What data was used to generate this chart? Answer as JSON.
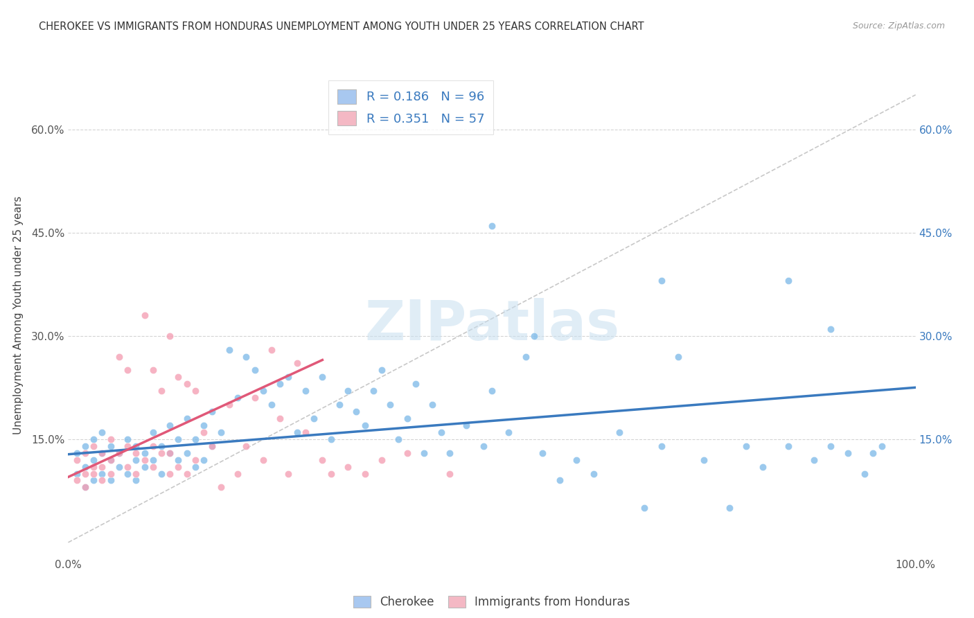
{
  "title": "CHEROKEE VS IMMIGRANTS FROM HONDURAS UNEMPLOYMENT AMONG YOUTH UNDER 25 YEARS CORRELATION CHART",
  "source": "Source: ZipAtlas.com",
  "ylabel": "Unemployment Among Youth under 25 years",
  "xlim": [
    0,
    1.0
  ],
  "ylim": [
    -0.02,
    0.68
  ],
  "yticks": [
    0.15,
    0.3,
    0.45,
    0.6
  ],
  "yticklabels": [
    "15.0%",
    "30.0%",
    "45.0%",
    "60.0%"
  ],
  "legend_labels": [
    "Cherokee",
    "Immigrants from Honduras"
  ],
  "legend_colors": [
    "#a8c8f0",
    "#f4b8c4"
  ],
  "R_blue": 0.186,
  "N_blue": 96,
  "R_pink": 0.351,
  "N_pink": 57,
  "blue_color": "#7ab8e8",
  "pink_color": "#f4a0b5",
  "blue_line_color": "#3a7abf",
  "pink_line_color": "#e05878",
  "diagonal_color": "#c8c8c8",
  "watermark": "ZIPatlas",
  "background_color": "#ffffff",
  "blue_scatter_x": [
    0.01,
    0.01,
    0.02,
    0.02,
    0.02,
    0.03,
    0.03,
    0.03,
    0.04,
    0.04,
    0.04,
    0.05,
    0.05,
    0.05,
    0.06,
    0.06,
    0.07,
    0.07,
    0.08,
    0.08,
    0.08,
    0.09,
    0.09,
    0.1,
    0.1,
    0.11,
    0.11,
    0.12,
    0.12,
    0.13,
    0.13,
    0.14,
    0.14,
    0.15,
    0.15,
    0.16,
    0.16,
    0.17,
    0.17,
    0.18,
    0.19,
    0.2,
    0.21,
    0.22,
    0.23,
    0.24,
    0.25,
    0.26,
    0.27,
    0.28,
    0.29,
    0.3,
    0.31,
    0.32,
    0.33,
    0.34,
    0.35,
    0.36,
    0.37,
    0.38,
    0.39,
    0.4,
    0.41,
    0.42,
    0.43,
    0.44,
    0.45,
    0.47,
    0.49,
    0.5,
    0.52,
    0.54,
    0.56,
    0.58,
    0.6,
    0.62,
    0.65,
    0.68,
    0.7,
    0.72,
    0.75,
    0.78,
    0.8,
    0.82,
    0.85,
    0.88,
    0.9,
    0.92,
    0.94,
    0.96,
    0.5,
    0.55,
    0.7,
    0.85,
    0.9,
    0.95
  ],
  "blue_scatter_y": [
    0.1,
    0.13,
    0.08,
    0.11,
    0.14,
    0.09,
    0.12,
    0.15,
    0.1,
    0.13,
    0.16,
    0.09,
    0.12,
    0.14,
    0.11,
    0.13,
    0.1,
    0.15,
    0.09,
    0.12,
    0.14,
    0.11,
    0.13,
    0.12,
    0.16,
    0.1,
    0.14,
    0.13,
    0.17,
    0.12,
    0.15,
    0.13,
    0.18,
    0.11,
    0.15,
    0.12,
    0.17,
    0.14,
    0.19,
    0.16,
    0.28,
    0.21,
    0.27,
    0.25,
    0.22,
    0.2,
    0.23,
    0.24,
    0.16,
    0.22,
    0.18,
    0.24,
    0.15,
    0.2,
    0.22,
    0.19,
    0.17,
    0.22,
    0.25,
    0.2,
    0.15,
    0.18,
    0.23,
    0.13,
    0.2,
    0.16,
    0.13,
    0.17,
    0.14,
    0.22,
    0.16,
    0.27,
    0.13,
    0.09,
    0.12,
    0.1,
    0.16,
    0.05,
    0.14,
    0.27,
    0.12,
    0.05,
    0.14,
    0.11,
    0.14,
    0.12,
    0.31,
    0.13,
    0.1,
    0.14,
    0.46,
    0.3,
    0.38,
    0.38,
    0.14,
    0.13
  ],
  "pink_scatter_x": [
    0.01,
    0.01,
    0.02,
    0.02,
    0.02,
    0.03,
    0.03,
    0.03,
    0.04,
    0.04,
    0.04,
    0.05,
    0.05,
    0.05,
    0.06,
    0.06,
    0.07,
    0.07,
    0.07,
    0.08,
    0.08,
    0.09,
    0.09,
    0.1,
    0.1,
    0.1,
    0.11,
    0.11,
    0.12,
    0.12,
    0.12,
    0.13,
    0.13,
    0.14,
    0.14,
    0.15,
    0.15,
    0.16,
    0.17,
    0.18,
    0.19,
    0.2,
    0.21,
    0.22,
    0.23,
    0.24,
    0.25,
    0.26,
    0.27,
    0.28,
    0.3,
    0.31,
    0.33,
    0.35,
    0.37,
    0.4,
    0.45
  ],
  "pink_scatter_y": [
    0.09,
    0.12,
    0.1,
    0.13,
    0.08,
    0.11,
    0.14,
    0.1,
    0.09,
    0.13,
    0.11,
    0.12,
    0.15,
    0.1,
    0.13,
    0.27,
    0.11,
    0.14,
    0.25,
    0.1,
    0.13,
    0.12,
    0.33,
    0.11,
    0.14,
    0.25,
    0.13,
    0.22,
    0.1,
    0.13,
    0.3,
    0.11,
    0.24,
    0.1,
    0.23,
    0.12,
    0.22,
    0.16,
    0.14,
    0.08,
    0.2,
    0.1,
    0.14,
    0.21,
    0.12,
    0.28,
    0.18,
    0.1,
    0.26,
    0.16,
    0.12,
    0.1,
    0.11,
    0.1,
    0.12,
    0.13,
    0.1
  ],
  "blue_trend_x": [
    0.0,
    1.0
  ],
  "blue_trend_y": [
    0.128,
    0.225
  ],
  "pink_trend_x": [
    0.0,
    0.3
  ],
  "pink_trend_y": [
    0.095,
    0.265
  ]
}
